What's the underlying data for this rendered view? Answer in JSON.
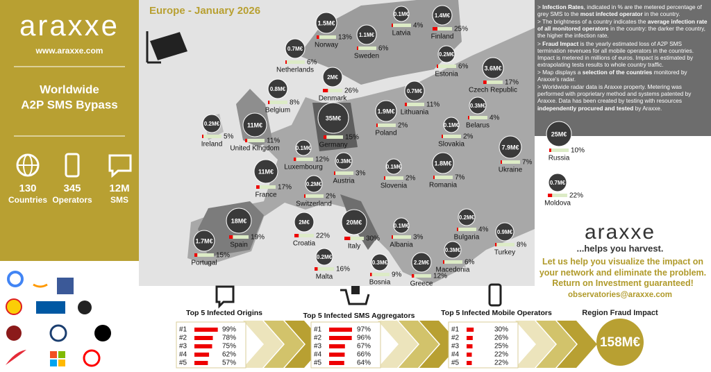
{
  "sidebar": {
    "logo": "araxxe",
    "url": "www.araxxe.com",
    "title_lines": [
      "Worldwide",
      "A2P SMS Bypass"
    ],
    "stats": [
      {
        "value": 130,
        "label": "Countries"
      },
      {
        "value": 345,
        "label": "Operators"
      },
      {
        "value": "12M",
        "label": "SMS"
      }
    ]
  },
  "map": {
    "title": "Europe - January 2026",
    "countries": [
      {
        "name": "Latvia",
        "impact": "0.1M€",
        "rate": {
          "value": 4,
          "label": "4%"
        }
      },
      {
        "name": "Finland",
        "impact": "1.4M€",
        "rate": {
          "value": 25,
          "label": "25%"
        }
      },
      {
        "name": "Norway",
        "impact": "1.5M€",
        "rate": {
          "value": 13,
          "label": "13%"
        }
      },
      {
        "name": "Sweden",
        "impact": "1.1M€",
        "rate": {
          "value": 6,
          "label": "6%"
        }
      },
      {
        "name": "Netherlands",
        "impact": "0.7M€",
        "rate": {
          "value": 6,
          "label": "6%"
        }
      },
      {
        "name": "Estonia",
        "impact": "0.2M€",
        "rate": {
          "value": 6,
          "label": "6%"
        }
      },
      {
        "name": "Czech Republic",
        "impact": "3.6M€",
        "rate": {
          "value": 17,
          "label": "17%"
        }
      },
      {
        "name": "Denmark",
        "impact": "2M€",
        "rate": {
          "value": 26,
          "label": "26%"
        }
      },
      {
        "name": "Belgium",
        "impact": "0.8M€",
        "rate": {
          "value": 8,
          "label": "8%"
        }
      },
      {
        "name": "Lithuania",
        "impact": "0.7M€",
        "rate": {
          "value": 11,
          "label": "11%"
        }
      },
      {
        "name": "Belarus",
        "impact": "0.3M€",
        "rate": {
          "value": 4,
          "label": "4%"
        }
      },
      {
        "name": "Poland",
        "impact": "1.9M€",
        "rate": {
          "value": 2,
          "label": "2%"
        }
      },
      {
        "name": "Ireland",
        "impact": "0.2M€",
        "rate": {
          "value": 5,
          "label": "5%"
        }
      },
      {
        "name": "United Kingdom",
        "impact": "11M€",
        "rate": {
          "value": 11,
          "label": "11%"
        }
      },
      {
        "name": "Germany",
        "impact": "35M€",
        "rate": {
          "value": 15,
          "label": "15%"
        }
      },
      {
        "name": "Slovakia",
        "impact": "0.1M€",
        "rate": {
          "value": 2,
          "label": "2%"
        }
      },
      {
        "name": "Russia",
        "impact": "25M€",
        "rate": {
          "value": 10,
          "label": "10%"
        }
      },
      {
        "name": "Ukraine",
        "impact": "7.9M€",
        "rate": {
          "value": 7,
          "label": "7%"
        }
      },
      {
        "name": "Luxembourg",
        "impact": "0.1M€",
        "rate": {
          "value": 12,
          "label": "12%"
        }
      },
      {
        "name": "Austria",
        "impact": "0.3M€",
        "rate": {
          "value": 3,
          "label": "3%"
        }
      },
      {
        "name": "Slovenia",
        "impact": "0.1M€",
        "rate": {
          "value": 2,
          "label": "2%"
        }
      },
      {
        "name": "Romania",
        "impact": "1.8M€",
        "rate": {
          "value": 7,
          "label": "7%"
        }
      },
      {
        "name": "France",
        "impact": "11M€",
        "rate": {
          "value": 17,
          "label": "17%"
        }
      },
      {
        "name": "Moldova",
        "impact": "0.7M€",
        "rate": {
          "value": 22,
          "label": "22%"
        }
      },
      {
        "name": "Switzerland",
        "impact": "0.2M€",
        "rate": {
          "value": 2,
          "label": "2%"
        }
      },
      {
        "name": "Spain",
        "impact": "18M€",
        "rate": {
          "value": 19,
          "label": "19%"
        }
      },
      {
        "name": "Croatia",
        "impact": "2M€",
        "rate": {
          "value": 22,
          "label": "22%"
        }
      },
      {
        "name": "Italy",
        "impact": "20M€",
        "rate": {
          "value": 30,
          "label": "30%"
        }
      },
      {
        "name": "Albania",
        "impact": "0.1M€",
        "rate": {
          "value": 3,
          "label": "3%"
        }
      },
      {
        "name": "Bulgaria",
        "impact": "0.2M€",
        "rate": {
          "value": 4,
          "label": "4%"
        }
      },
      {
        "name": "Turkey",
        "impact": "0.9M€",
        "rate": {
          "value": 8,
          "label": "8%"
        }
      },
      {
        "name": "Portugal",
        "impact": "1.7M€",
        "rate": {
          "value": 15,
          "label": "15%"
        }
      },
      {
        "name": "Malta",
        "impact": "0.2M€",
        "rate": {
          "value": 16,
          "label": "16%"
        }
      },
      {
        "name": "Macedonia",
        "impact": "0.3M€",
        "rate": {
          "value": 6,
          "label": "6%"
        }
      },
      {
        "name": "Greece",
        "impact": "2.2M€",
        "rate": {
          "value": 12,
          "label": "12%"
        }
      },
      {
        "name": "Bosnia",
        "impact": "0.3M€",
        "rate": {
          "value": 9,
          "label": "9%"
        }
      }
    ]
  },
  "notes": [
    {
      "runs": [
        {
          "text": "> "
        },
        {
          "text": "Infection Rates",
          "bold": true
        },
        {
          "text": ", indicated in % are the metered percentage of grey SMS to the "
        },
        {
          "text": "most infected operator",
          "bold": true
        },
        {
          "text": " in the country."
        }
      ]
    },
    {
      "runs": [
        {
          "text": "> The brightness of a country indicates the "
        },
        {
          "text": "average infection rate of all monitored operators",
          "bold": true
        },
        {
          "text": " in the country: the darker the country, the higher the infection rate."
        }
      ]
    },
    {
      "runs": [
        {
          "text": "> "
        },
        {
          "text": "Fraud Impact",
          "bold": true
        },
        {
          "text": " is the yearly estimated loss of A2P SMS termination revenues for all mobile operators in the countries. Impact is metered in millions of euros. Impact is estimated by extrapolating tests results to whole country traffic."
        }
      ]
    },
    {
      "runs": [
        {
          "text": "> Map displays a "
        },
        {
          "text": "selection of the countries",
          "bold": true
        },
        {
          "text": " monitored by Araxxe's radar."
        }
      ]
    },
    {
      "runs": [
        {
          "text": "> Worldwide radar data is Araxxe property. Metering was performed with proprietary method and systems patented by Araxxe. Data has been created by testing with resources "
        },
        {
          "text": "independently procured and tested",
          "bold": true
        },
        {
          "text": " by Araxxe."
        }
      ]
    }
  ],
  "promo": {
    "logo": "araxxe",
    "tagline": "...helps you harvest.",
    "pitch": "Let us help you visualize the impact on your network and eliminate the problem. Return on Investment guaranteed!",
    "email": "observatories@araxxe.com"
  },
  "top5": [
    {
      "title": "Top 5 Infected Origins",
      "rows": [
        {
          "rank": "#1",
          "value": 99,
          "label": "99%"
        },
        {
          "rank": "#2",
          "value": 78,
          "label": "78%"
        },
        {
          "rank": "#3",
          "value": 75,
          "label": "75%"
        },
        {
          "rank": "#4",
          "value": 62,
          "label": "62%"
        },
        {
          "rank": "#5",
          "value": 57,
          "label": "57%"
        }
      ]
    },
    {
      "title": "Top 5 Infected SMS Aggregators",
      "rows": [
        {
          "rank": "#1",
          "value": 97,
          "label": "97%"
        },
        {
          "rank": "#2",
          "value": 96,
          "label": "96%"
        },
        {
          "rank": "#3",
          "value": 67,
          "label": "67%"
        },
        {
          "rank": "#4",
          "value": 66,
          "label": "66%"
        },
        {
          "rank": "#5",
          "value": 64,
          "label": "64%"
        }
      ]
    },
    {
      "title": "Top 5 Infected Mobile Operators",
      "rows": [
        {
          "rank": "#1",
          "value": 30,
          "label": "30%"
        },
        {
          "rank": "#2",
          "value": 26,
          "label": "26%"
        },
        {
          "rank": "#3",
          "value": 25,
          "label": "25%"
        },
        {
          "rank": "#4",
          "value": 22,
          "label": "22%"
        },
        {
          "rank": "#5",
          "value": 22,
          "label": "22%"
        }
      ]
    }
  ],
  "region_impact": {
    "title": "Region Fraud Impact",
    "value": "158M€"
  }
}
